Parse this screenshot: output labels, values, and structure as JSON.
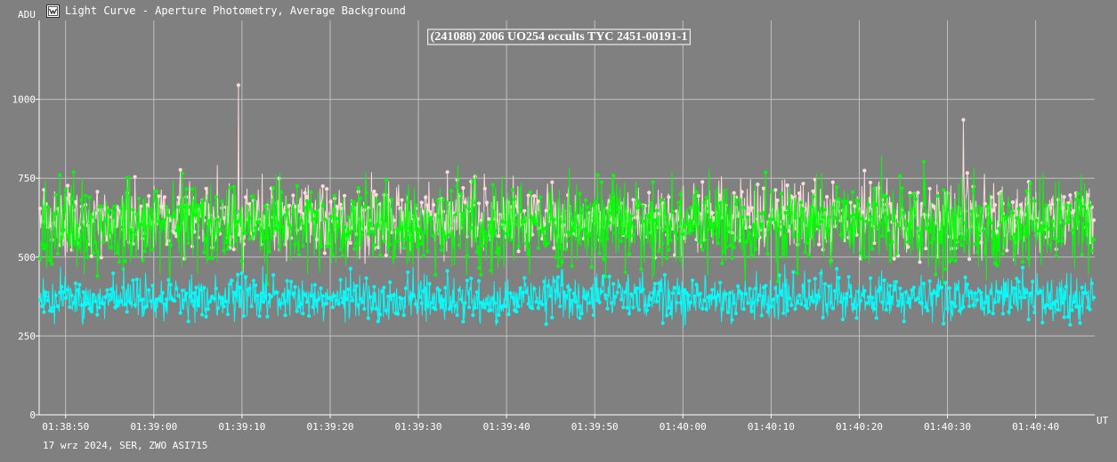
{
  "window": {
    "title": "Light Curve - Aperture Photometry, Average Background",
    "icon": "light-curve-app-icon"
  },
  "footer": {
    "caption": "17 wrz 2024, SER, ZWO ASI715"
  },
  "colors": {
    "background": "#808080",
    "grid": "#c0c0c0",
    "series_target": "#ffdcdc",
    "series_comparison": "#00ff00",
    "series_background": "#00ffff"
  },
  "chart_data": {
    "type": "line",
    "title": "(241088) 2006 UO254 occults TYC 2451-00191-1",
    "xlabel": "UT",
    "ylabel": "ADU",
    "xlim": [
      "01:38:47.0",
      "01:40:46.7"
    ],
    "ylim": [
      0,
      1250
    ],
    "y_ticks": [
      0,
      250,
      500,
      750,
      1000
    ],
    "x_ticks": [
      "01:38:50",
      "01:39:00",
      "01:39:10",
      "01:39:20",
      "01:39:30",
      "01:39:40",
      "01:39:50",
      "01:40:00",
      "01:40:10",
      "01:40:20",
      "01:40:30",
      "01:40:40"
    ],
    "grid": true,
    "legend": "none",
    "samples": 1600,
    "series": [
      {
        "color": "#ffdcdc",
        "mean": 625,
        "low": 440,
        "high": 900,
        "outliers": [
          {
            "x": "01:39:09.5",
            "y": 1045
          },
          {
            "x": "01:40:31.9",
            "y": 935
          }
        ]
      },
      {
        "color": "#00ff00",
        "mean": 600,
        "low": 330,
        "high": 915
      },
      {
        "color": "#00ffff",
        "mean": 370,
        "low": 210,
        "high": 500
      }
    ]
  }
}
